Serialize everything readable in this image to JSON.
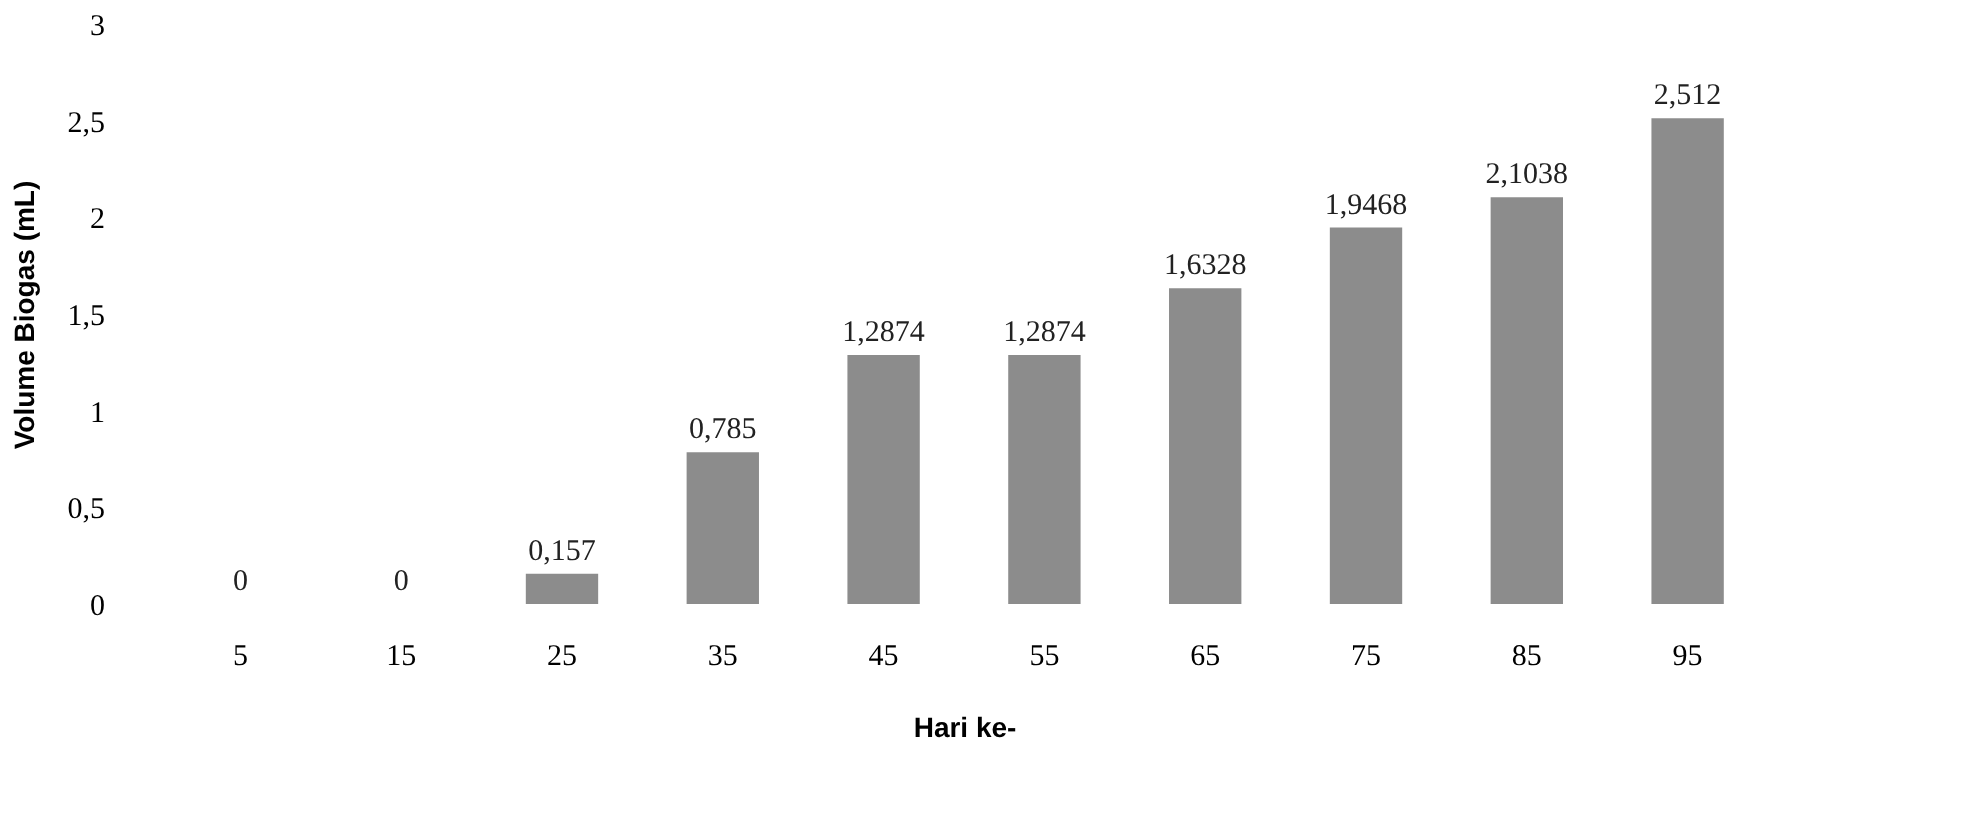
{
  "chart_data": {
    "type": "bar",
    "xlabel": "Hari ke-",
    "ylabel": "Volume Biogas (mL)",
    "categories": [
      "5",
      "15",
      "25",
      "35",
      "45",
      "55",
      "65",
      "75",
      "85",
      "95"
    ],
    "values": [
      0,
      0,
      0.157,
      0.785,
      1.2874,
      1.2874,
      1.6328,
      1.9468,
      2.1038,
      2.512
    ],
    "value_labels": [
      "0",
      "0",
      "0,157",
      "0,785",
      "1,2874",
      "1,2874",
      "1,6328",
      "1,9468",
      "2,1038",
      "2,512"
    ],
    "color": "#8c8c8c",
    "ylim": [
      0,
      3
    ],
    "yticks": [
      0,
      {
        "value": 0.5,
        "label": "0,5"
      },
      1,
      {
        "value": 1.5,
        "label": "1,5"
      },
      2,
      {
        "value": 2.5,
        "label": "2,5"
      },
      3
    ],
    "grid": false
  }
}
